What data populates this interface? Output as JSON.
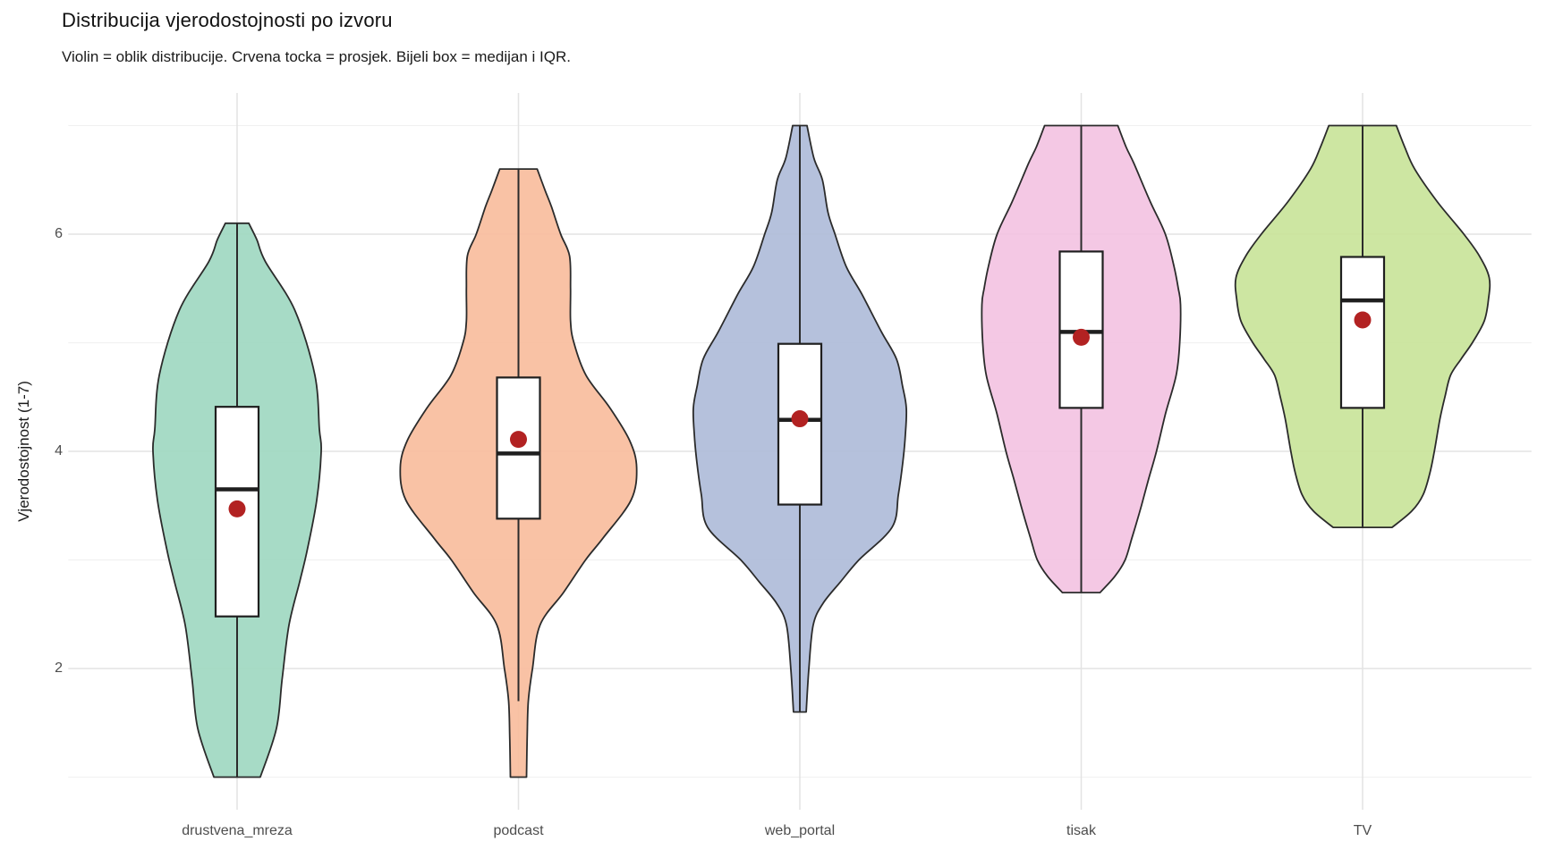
{
  "chart_data": {
    "type": "violin",
    "title": "Distribucija vjerodostojnosti po izvoru",
    "subtitle": "Violin = oblik distribucije. Crvena tocka = prosjek. Bijeli box = medijan i IQR.",
    "ylabel": "Vjerodostojnost (1-7)",
    "ylim": [
      0.7,
      7.3
    ],
    "y_major_ticks": [
      2,
      4,
      6
    ],
    "y_tick_labels": [
      "2",
      "4",
      "6"
    ],
    "y_minor_ticks": [
      1,
      3,
      5,
      7
    ],
    "grid": "horizontal major+minor and vertical major, light gray on white",
    "legend": "none",
    "categories": [
      "drustvena_mreza",
      "podcast",
      "web_portal",
      "tisak",
      "TV"
    ],
    "style": {
      "mean_point_color": "#B22222",
      "box_fill": "#FFFFFF",
      "box_stroke": "#1F1F1F",
      "violin_stroke": "#2B2B2B",
      "grid_major_color": "#E3E3E3",
      "grid_minor_color": "#F1F1F1"
    },
    "series": [
      {
        "label": "drustvena_mreza",
        "fill": "#A0D8C1",
        "stats": {
          "min": 1.0,
          "max": 6.1,
          "q1": 2.48,
          "median": 3.65,
          "q3": 4.41,
          "mean": 3.47,
          "whisker_low": 1.0,
          "whisker_high": 6.1
        },
        "density_profile": [
          [
            6.1,
            0.083
          ],
          [
            5.95,
            0.14
          ],
          [
            5.75,
            0.2
          ],
          [
            5.3,
            0.41
          ],
          [
            4.7,
            0.553
          ],
          [
            4.2,
            0.585
          ],
          [
            4.0,
            0.598
          ],
          [
            3.55,
            0.566
          ],
          [
            3.1,
            0.5
          ],
          [
            2.8,
            0.445
          ],
          [
            2.4,
            0.369
          ],
          [
            1.9,
            0.32
          ],
          [
            1.45,
            0.28
          ],
          [
            1.0,
            0.165
          ]
        ]
      },
      {
        "label": "podcast",
        "fill": "#F8BD9D",
        "stats": {
          "min": 1.0,
          "max": 6.6,
          "q1": 3.38,
          "median": 3.98,
          "q3": 4.68,
          "mean": 4.11,
          "whisker_low": 1.7,
          "whisker_high": 6.6
        },
        "density_profile": [
          [
            6.6,
            0.133
          ],
          [
            6.4,
            0.19
          ],
          [
            6.25,
            0.235
          ],
          [
            6.0,
            0.3
          ],
          [
            5.8,
            0.363
          ],
          [
            5.5,
            0.37
          ],
          [
            5.2,
            0.37
          ],
          [
            5.0,
            0.394
          ],
          [
            4.7,
            0.48
          ],
          [
            4.4,
            0.65
          ],
          [
            4.1,
            0.79
          ],
          [
            3.85,
            0.84
          ],
          [
            3.55,
            0.8
          ],
          [
            3.2,
            0.6
          ],
          [
            3.0,
            0.477
          ],
          [
            2.7,
            0.32
          ],
          [
            2.4,
            0.153
          ],
          [
            2.0,
            0.1
          ],
          [
            1.7,
            0.07
          ],
          [
            1.35,
            0.062
          ],
          [
            1.0,
            0.057
          ]
        ]
      },
      {
        "label": "web_portal",
        "fill": "#AFBCD9",
        "stats": {
          "min": 1.6,
          "max": 7.0,
          "q1": 3.51,
          "median": 4.29,
          "q3": 4.99,
          "mean": 4.3,
          "whisker_low": 1.6,
          "whisker_high": 7.0
        },
        "density_profile": [
          [
            7.0,
            0.051
          ],
          [
            6.7,
            0.1
          ],
          [
            6.5,
            0.16
          ],
          [
            6.2,
            0.2
          ],
          [
            6.0,
            0.25
          ],
          [
            5.7,
            0.33
          ],
          [
            5.45,
            0.44
          ],
          [
            5.1,
            0.58
          ],
          [
            4.85,
            0.687
          ],
          [
            4.6,
            0.73
          ],
          [
            4.4,
            0.757
          ],
          [
            4.15,
            0.75
          ],
          [
            3.9,
            0.732
          ],
          [
            3.6,
            0.7
          ],
          [
            3.3,
            0.655
          ],
          [
            3.0,
            0.42
          ],
          [
            2.8,
            0.29
          ],
          [
            2.6,
            0.165
          ],
          [
            2.4,
            0.095
          ],
          [
            2.0,
            0.064
          ],
          [
            1.6,
            0.045
          ]
        ]
      },
      {
        "label": "tisak",
        "fill": "#F3C3E2",
        "stats": {
          "min": 2.7,
          "max": 7.0,
          "q1": 4.4,
          "median": 5.1,
          "q3": 5.84,
          "mean": 5.05,
          "whisker_low": 2.7,
          "whisker_high": 7.0
        },
        "density_profile": [
          [
            7.0,
            0.26
          ],
          [
            6.8,
            0.32
          ],
          [
            6.65,
            0.375
          ],
          [
            6.3,
            0.49
          ],
          [
            6.0,
            0.598
          ],
          [
            5.7,
            0.66
          ],
          [
            5.5,
            0.69
          ],
          [
            5.35,
            0.706
          ],
          [
            5.0,
            0.7
          ],
          [
            4.7,
            0.675
          ],
          [
            4.35,
            0.6
          ],
          [
            4.0,
            0.535
          ],
          [
            3.75,
            0.48
          ],
          [
            3.5,
            0.428
          ],
          [
            3.2,
            0.36
          ],
          [
            3.0,
            0.312
          ],
          [
            2.85,
            0.24
          ],
          [
            2.7,
            0.134
          ]
        ]
      },
      {
        "label": "TV",
        "fill": "#C9E49A",
        "stats": {
          "min": 3.3,
          "max": 7.0,
          "q1": 4.4,
          "median": 5.39,
          "q3": 5.79,
          "mean": 5.21,
          "whisker_low": 3.3,
          "whisker_high": 7.0
        },
        "density_profile": [
          [
            7.0,
            0.24
          ],
          [
            6.8,
            0.3
          ],
          [
            6.6,
            0.37
          ],
          [
            6.3,
            0.53
          ],
          [
            6.0,
            0.72
          ],
          [
            5.8,
            0.83
          ],
          [
            5.6,
            0.9
          ],
          [
            5.4,
            0.895
          ],
          [
            5.2,
            0.865
          ],
          [
            5.0,
            0.78
          ],
          [
            4.85,
            0.7
          ],
          [
            4.7,
            0.625
          ],
          [
            4.5,
            0.585
          ],
          [
            4.3,
            0.55
          ],
          [
            4.0,
            0.51
          ],
          [
            3.8,
            0.478
          ],
          [
            3.6,
            0.43
          ],
          [
            3.45,
            0.35
          ],
          [
            3.3,
            0.21
          ]
        ]
      }
    ]
  }
}
